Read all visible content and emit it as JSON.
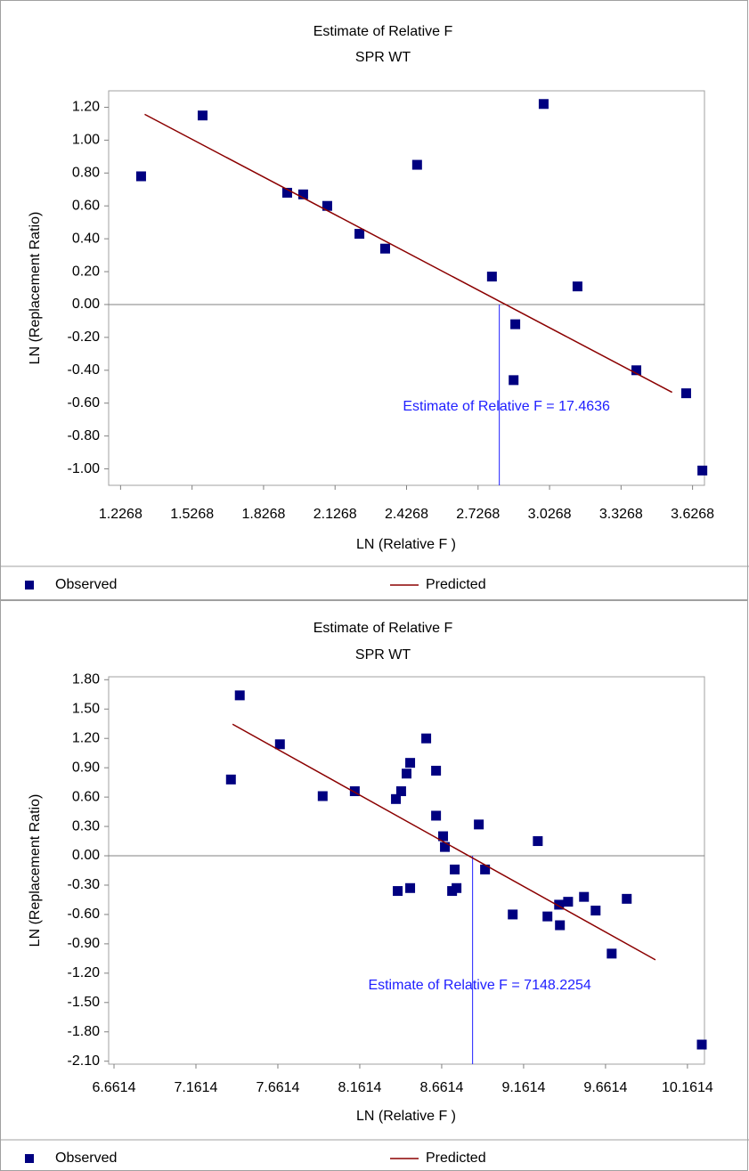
{
  "chart_data": [
    {
      "type": "scatter",
      "title": "Estimate of Relative F",
      "subtitle": "SPR WT",
      "x_label": "LN (Relative F )",
      "y_label": "LN (Replacement Ratio)",
      "xlim": [
        1.1768,
        3.6768
      ],
      "ylim": [
        -1.1,
        1.3
      ],
      "xticks": [
        1.2268,
        1.5268,
        1.8268,
        2.1268,
        2.4268,
        2.7268,
        3.0268,
        3.3268,
        3.6268
      ],
      "yticks": [
        {
          "value": 1.2,
          "label": "1.20"
        },
        {
          "value": 1,
          "label": "1.00"
        },
        {
          "value": 0.8,
          "label": "0.80"
        },
        {
          "value": 0.6,
          "label": "0.60"
        },
        {
          "value": 0.4,
          "label": "0.40"
        },
        {
          "value": 0.2,
          "label": "0.20"
        },
        {
          "value": 0,
          "label": "0.00"
        },
        {
          "value": -0.2,
          "label": "-0.20"
        },
        {
          "value": -0.4,
          "label": "-0.40"
        },
        {
          "value": -0.6,
          "label": "-0.60"
        },
        {
          "value": -0.8,
          "label": "-0.80"
        },
        {
          "value": -1,
          "label": "-1.00"
        }
      ],
      "series": [
        {
          "name": "Observed",
          "color": "#000080",
          "x": [
            1.313,
            1.571,
            1.926,
            1.993,
            2.094,
            2.229,
            2.337,
            2.471,
            2.785,
            3.002,
            3.144,
            2.883,
            2.876,
            3.391,
            3.6,
            3.668
          ],
          "values": [
            0.78,
            1.15,
            0.68,
            0.67,
            0.6,
            0.43,
            0.34,
            0.85,
            0.17,
            1.22,
            0.11,
            -0.12,
            -0.46,
            -0.4,
            -0.54,
            -1.01
          ]
        },
        {
          "name": "Predicted",
          "color": "#8b0000",
          "x": [
            1.328,
            3.541
          ],
          "values": [
            1.157,
            -0.534
          ]
        }
      ],
      "annotation": {
        "text": "Estimate of Relative F = 17.4636",
        "x": 2.816
      }
    },
    {
      "type": "scatter",
      "title": "Estimate of Relative F",
      "subtitle": "SPR WT",
      "x_label": "LN (Relative F )",
      "y_label": "LN (Replacement Ratio)",
      "xlim": [
        6.6287,
        10.2653
      ],
      "ylim": [
        -2.13,
        1.83
      ],
      "xticks": [
        6.6614,
        7.1614,
        7.6614,
        8.1614,
        8.6614,
        9.1614,
        9.6614,
        10.1614
      ],
      "yticks": [
        {
          "value": 1.8,
          "label": "1.80"
        },
        {
          "value": 1.5,
          "label": "1.50"
        },
        {
          "value": 1.2,
          "label": "1.20"
        },
        {
          "value": 0.9,
          "label": "0.90"
        },
        {
          "value": 0.6,
          "label": "0.60"
        },
        {
          "value": 0.3,
          "label": "0.30"
        },
        {
          "value": 0,
          "label": "0.00"
        },
        {
          "value": -0.3,
          "label": "-0.30"
        },
        {
          "value": -0.6,
          "label": "-0.60"
        },
        {
          "value": -0.9,
          "label": "-0.90"
        },
        {
          "value": -1.2,
          "label": "-1.20"
        },
        {
          "value": -1.5,
          "label": "-1.50"
        },
        {
          "value": -1.8,
          "label": "-1.80"
        },
        {
          "value": -2.1,
          "label": "-2.10"
        }
      ],
      "series": [
        {
          "name": "Observed",
          "color": "#000080",
          "x": [
            7.429,
            7.375,
            7.674,
            7.935,
            8.131,
            8.382,
            8.414,
            8.447,
            8.469,
            8.567,
            8.627,
            8.627,
            8.67,
            8.681,
            8.888,
            9.248,
            8.393,
            8.469,
            8.725,
            8.752,
            8.741,
            8.926,
            9.095,
            9.307,
            9.378,
            9.433,
            9.383,
            9.53,
            9.601,
            9.699,
            9.791,
            10.249
          ],
          "values": [
            1.64,
            0.78,
            1.14,
            0.61,
            0.66,
            0.58,
            0.66,
            0.84,
            0.95,
            1.2,
            0.87,
            0.41,
            0.2,
            0.09,
            0.32,
            0.15,
            -0.36,
            -0.33,
            -0.36,
            -0.33,
            -0.14,
            -0.14,
            -0.6,
            -0.62,
            -0.5,
            -0.47,
            -0.71,
            -0.42,
            -0.56,
            -1.0,
            -0.44,
            -1.93
          ]
        },
        {
          "name": "Predicted",
          "color": "#8b0000",
          "x": [
            7.385,
            9.966
          ],
          "values": [
            1.345,
            -1.064
          ]
        }
      ],
      "annotation": {
        "text": "Estimate of Relative F = 7148.2254",
        "x": 8.85
      }
    }
  ]
}
